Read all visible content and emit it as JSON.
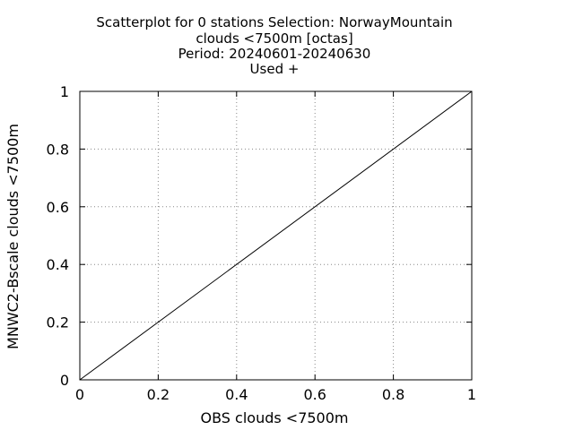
{
  "chart_data": {
    "type": "scatter",
    "title_lines": [
      "Scatterplot for    0 stations Selection: NorwayMountain",
      "clouds <7500m [octas]",
      "Period: 20240601-20240630",
      "Used  +"
    ],
    "xlabel": "OBS clouds <7500m",
    "ylabel": "MNWC2-Bscale clouds <7500m",
    "xlim": [
      0,
      1
    ],
    "ylim": [
      0,
      1
    ],
    "xticks": [
      "0",
      "0.2",
      "0.4",
      "0.6",
      "0.8",
      "1"
    ],
    "yticks": [
      "0",
      "0.2",
      "0.4",
      "0.6",
      "0.8",
      "1"
    ],
    "grid": true,
    "series": [],
    "reference_line": {
      "x": [
        0,
        1
      ],
      "y": [
        0,
        1
      ]
    }
  }
}
